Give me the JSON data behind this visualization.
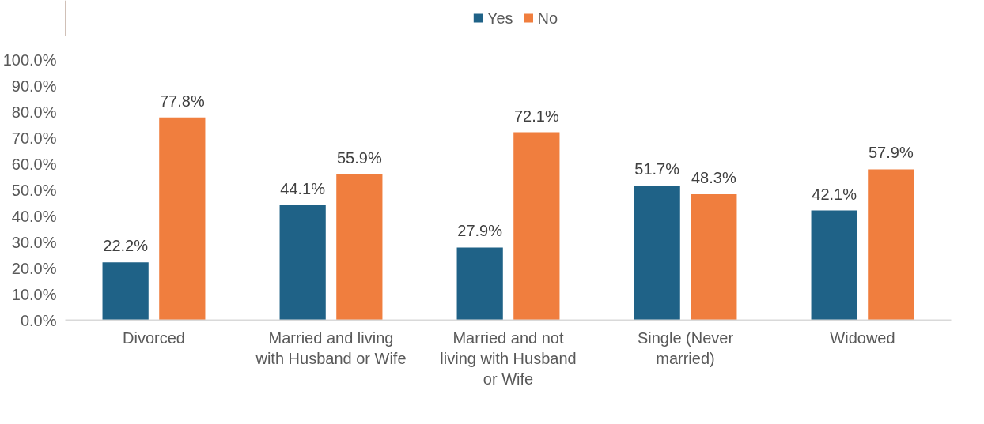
{
  "chart_data": {
    "type": "bar",
    "categories": [
      "Divorced",
      "Married and living with Husband or Wife",
      "Married and not living with Husband or Wife",
      "Single (Never married)",
      "Widowed"
    ],
    "series": [
      {
        "name": "Yes",
        "color": "#1f6287",
        "values": [
          22.2,
          44.1,
          27.9,
          51.7,
          42.1
        ]
      },
      {
        "name": "No",
        "color": "#f07e3e",
        "values": [
          77.8,
          55.9,
          72.1,
          48.3,
          57.9
        ]
      }
    ],
    "ylim": [
      0,
      100
    ],
    "yticks": [
      {
        "value": 0,
        "label": "0.0%"
      },
      {
        "value": 10,
        "label": "10.0%"
      },
      {
        "value": 20,
        "label": "20.0%"
      },
      {
        "value": 30,
        "label": "30.0%"
      },
      {
        "value": 40,
        "label": "40.0%"
      },
      {
        "value": 50,
        "label": "50.0%"
      },
      {
        "value": 60,
        "label": "60.0%"
      },
      {
        "value": 70,
        "label": "70.0%"
      },
      {
        "value": 80,
        "label": "80.0%"
      },
      {
        "value": 90,
        "label": "90.0%"
      },
      {
        "value": 100,
        "label": "100.0%"
      }
    ],
    "value_labels": [
      [
        "22.2%",
        "44.1%",
        "27.9%",
        "51.7%",
        "42.1%"
      ],
      [
        "77.8%",
        "55.9%",
        "72.1%",
        "48.3%",
        "57.9%"
      ]
    ],
    "grid": false,
    "legend": "top"
  }
}
